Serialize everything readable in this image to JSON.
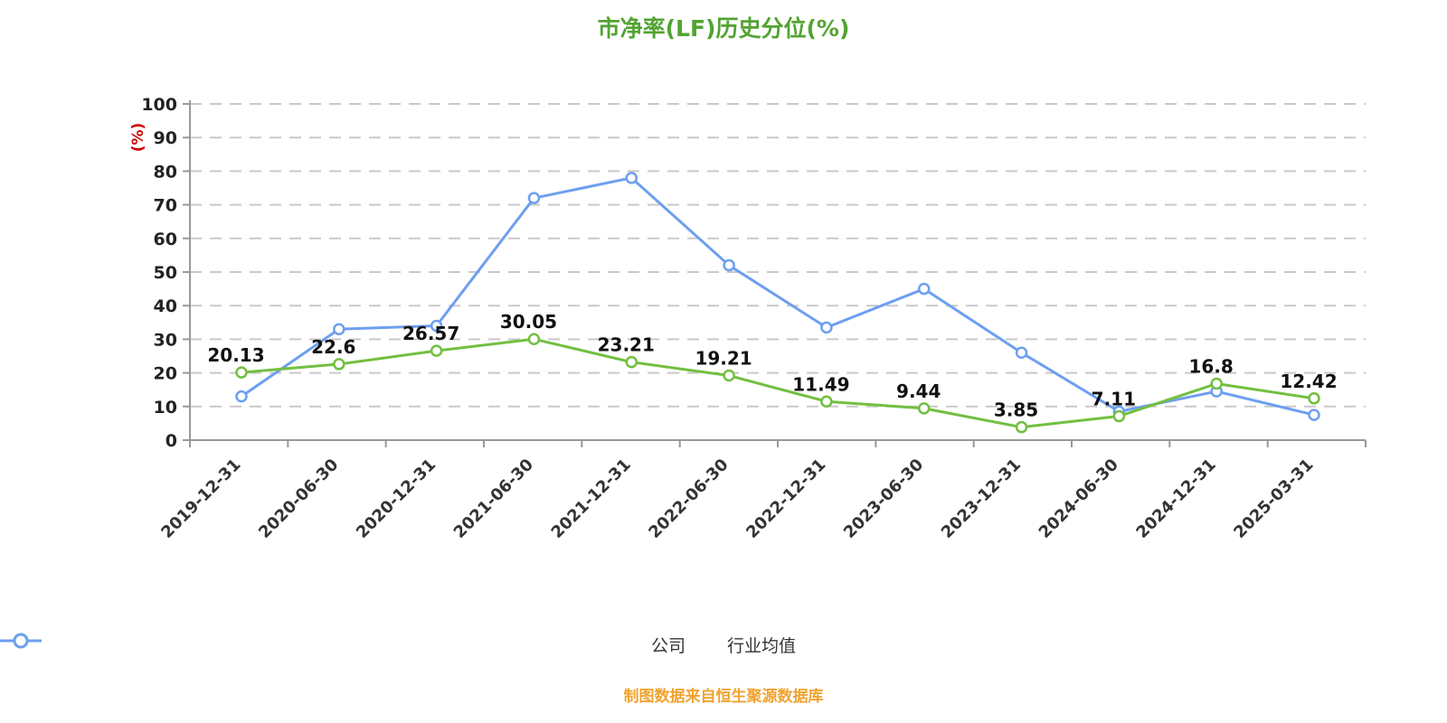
{
  "title": "市净率(LF)历史分位(%)",
  "source_note": "制图数据来自恒生聚源数据库",
  "y_axis_unit_label": "(%)",
  "colors": {
    "title": "#53a332",
    "source": "#f0a32f",
    "company_line": "#72bf40",
    "industry_line": "#6d9ff0",
    "axis": "#999999",
    "grid": "#c9c9c9",
    "tick_label": "#222222",
    "data_label": "#111111",
    "y_unit_label": "#cc0000",
    "marker_fill": "#ffffff"
  },
  "legend": {
    "items": [
      {
        "label": "公司",
        "color": "#72bf40"
      },
      {
        "label": "行业均值",
        "color": "#6d9ff0"
      }
    ]
  },
  "chart_data": {
    "type": "line",
    "title": "市净率(LF)历史分位(%)",
    "ylabel": "(%)",
    "ylim": [
      0,
      100
    ],
    "y_ticks": [
      0,
      10,
      20,
      30,
      40,
      50,
      60,
      70,
      80,
      90,
      100
    ],
    "grid": "horizontal-dashed",
    "legend_position": "bottom",
    "categories": [
      "2019-12-31",
      "2020-06-30",
      "2020-12-31",
      "2021-06-30",
      "2021-12-31",
      "2022-06-30",
      "2022-12-31",
      "2023-06-30",
      "2023-12-31",
      "2024-06-30",
      "2024-12-31",
      "2025-03-31"
    ],
    "series": [
      {
        "name": "公司",
        "color": "#72bf40",
        "show_labels": true,
        "values": [
          20.13,
          22.6,
          26.57,
          30.05,
          23.21,
          19.21,
          11.49,
          9.44,
          3.85,
          7.11,
          16.8,
          12.42
        ]
      },
      {
        "name": "行业均值",
        "color": "#6d9ff0",
        "show_labels": false,
        "values": [
          13,
          33,
          34,
          72,
          78,
          52,
          33.5,
          45,
          26,
          8.5,
          14.5,
          7.5
        ]
      }
    ]
  }
}
